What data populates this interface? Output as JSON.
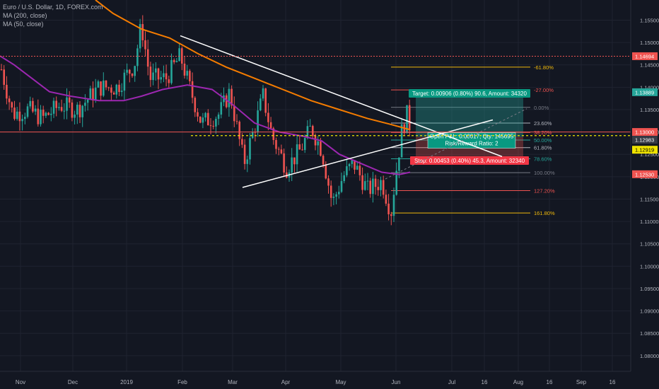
{
  "header": {
    "symbol": "Euro / U.S. Dollar, 1D, FOREX.com",
    "ma200": "MA (200, close)",
    "ma50": "MA (50, close)"
  },
  "colors": {
    "bg": "#131722",
    "up": "#26a69a",
    "down": "#ef5350",
    "ma200": "#f57c00",
    "ma50": "#9c27b0",
    "grid": "#1f2330",
    "axis_text": "#b2b5be",
    "fib": "#f0b90b",
    "target": "#26a69a",
    "stop": "#ef5350"
  },
  "chart_data": {
    "type": "candlestick",
    "ylim": [
      1.0765,
      1.1595
    ],
    "y_ticks": [
      "1.15500",
      "1.15000",
      "1.14500",
      "1.14000",
      "1.13500",
      "1.13000",
      "1.12500",
      "1.12000",
      "1.11500",
      "1.11000",
      "1.10500",
      "1.10000",
      "1.09500",
      "1.09000",
      "1.08500",
      "1.08000"
    ],
    "x_ticks": [
      "Nov",
      "Dec",
      "2019",
      "Feb",
      "Mar",
      "Apr",
      "May",
      "Jun",
      "Jul",
      "16",
      "Aug",
      "16",
      "Sep",
      "16"
    ],
    "price_labels": [
      {
        "value": 1.14694,
        "text": "1.14694",
        "color": "#ef5350",
        "text_color": "#ffffff"
      },
      {
        "value": 1.13889,
        "text": "1.13889",
        "color": "#26a69a",
        "text_color": "#ffffff"
      },
      {
        "value": 1.13,
        "text": "1.13000",
        "color": "#ef5350",
        "text_color": "#ffffff"
      },
      {
        "value": 1.12983,
        "text": "1.12983",
        "color": "#363a45",
        "text_color": "#ffffff"
      },
      {
        "value": 1.12919,
        "text": "1.12919",
        "color": "#f0e400",
        "text_color": "#000000"
      },
      {
        "value": 1.1253,
        "text": "1.12530",
        "color": "#ef5350",
        "text_color": "#ffffff"
      }
    ],
    "fib_levels": [
      {
        "label": "-61.80%",
        "value": 1.1445,
        "color": "#f0b90b"
      },
      {
        "label": "-27.00%",
        "value": 1.1394,
        "color": "#ef5350"
      },
      {
        "label": "0.00%",
        "value": 1.1355,
        "color": "#787b86"
      },
      {
        "label": "23.60%",
        "value": 1.132,
        "color": "#b2b5be"
      },
      {
        "label": "38.20%",
        "value": 1.1299,
        "color": "#ef5350"
      },
      {
        "label": "50.00%",
        "value": 1.1282,
        "color": "#26a69a"
      },
      {
        "label": "61.80%",
        "value": 1.1265,
        "color": "#b2b5be"
      },
      {
        "label": "78.60%",
        "value": 1.124,
        "color": "#26a69a"
      },
      {
        "label": "100.00%",
        "value": 1.1209,
        "color": "#787b86"
      },
      {
        "label": "127.20%",
        "value": 1.1169,
        "color": "#ef5350"
      },
      {
        "label": "161.80%",
        "value": 1.1119,
        "color": "#f0b90b"
      }
    ],
    "position": {
      "entry": 1.1289,
      "target": 1.138,
      "stop": 1.1244,
      "target_label": "Target: 0.00906 (0.80%) 90.6, Amount: 34320",
      "stop_label": "Stop: 0.00453 (0.40%) 45.3, Amount: 32340",
      "pnl_label": "Open P&L: 0.00017, Qty: 145695",
      "rr_label": "Risk/Reward Ratio: 2"
    }
  }
}
